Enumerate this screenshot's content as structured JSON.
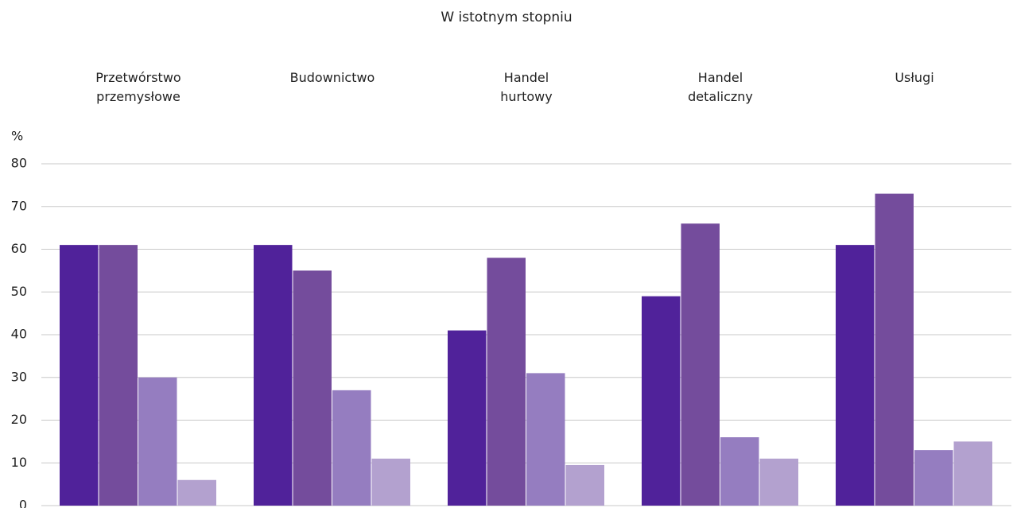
{
  "chart_data": {
    "type": "bar",
    "title": "W istotnym stopniu",
    "y_label": "%",
    "categories": [
      "Przetwórstwo\nprzemysłowe",
      "Budownictwo",
      "Handel\nhurtowy",
      "Handel\ndetaliczny",
      "Usługi"
    ],
    "series": [
      {
        "color": "#50229a",
        "values": [
          61,
          61,
          41,
          49,
          61
        ]
      },
      {
        "color": "#744c9c",
        "values": [
          61,
          55,
          58,
          66,
          73
        ]
      },
      {
        "color": "#957dc0",
        "values": [
          30,
          27,
          31,
          16,
          13
        ]
      },
      {
        "color": "#b3a1cf",
        "values": [
          6,
          11,
          9.5,
          11,
          15
        ]
      }
    ],
    "ylim": [
      0,
      80
    ],
    "yticks": [
      0,
      10,
      20,
      30,
      40,
      50,
      60,
      70,
      80
    ],
    "grid": true
  }
}
